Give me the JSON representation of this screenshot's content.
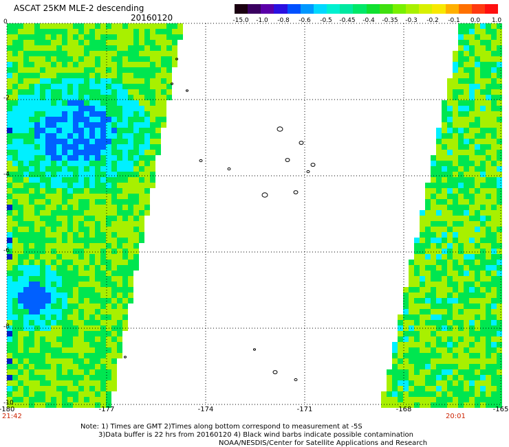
{
  "header": {
    "title": "ASCAT 25KM MLE-2 descending",
    "date": "20160120"
  },
  "colorbar": {
    "labels": [
      "-15.0",
      "-1.0",
      "-0.8",
      "-0.6",
      "-0.5",
      "-0.45",
      "-0.4",
      "-0.35",
      "-0.3",
      "-0.2",
      "-0.1",
      "0.0",
      "1.0"
    ],
    "colors": [
      "#1a0010",
      "#3a0060",
      "#5a00a8",
      "#2a10e0",
      "#0050ff",
      "#0098ff",
      "#00d8ff",
      "#00f0d0",
      "#00e8a0",
      "#00e868",
      "#10e030",
      "#40e010",
      "#78f000",
      "#a8f000",
      "#d8f000",
      "#f8e800",
      "#ffb000",
      "#ff7000",
      "#ff3a10",
      "#ff1010"
    ]
  },
  "axes": {
    "x_ticks": [
      "-180",
      "-177",
      "-174",
      "-171",
      "-168",
      "-165"
    ],
    "y_ticks": [
      "0",
      "-2",
      "-4",
      "-6",
      "-8",
      "-10"
    ]
  },
  "times": {
    "left": "21:42",
    "right": "20:01"
  },
  "notes": {
    "line1": "Note: 1) Times are GMT 2)Times along bottom correspond to measurement at -5S",
    "line2": "3)Data buffer is 22 hrs from 20160120 4) Black wind barbs indicate possible contamination",
    "line3": "NOAA/NESDIS/Center for Satellite Applications and Research"
  },
  "palette": {
    "green": "#00e650",
    "lime": "#a8f000",
    "cyan": "#00f0ff",
    "blue": "#0060ff",
    "navy": "#0020c8"
  }
}
